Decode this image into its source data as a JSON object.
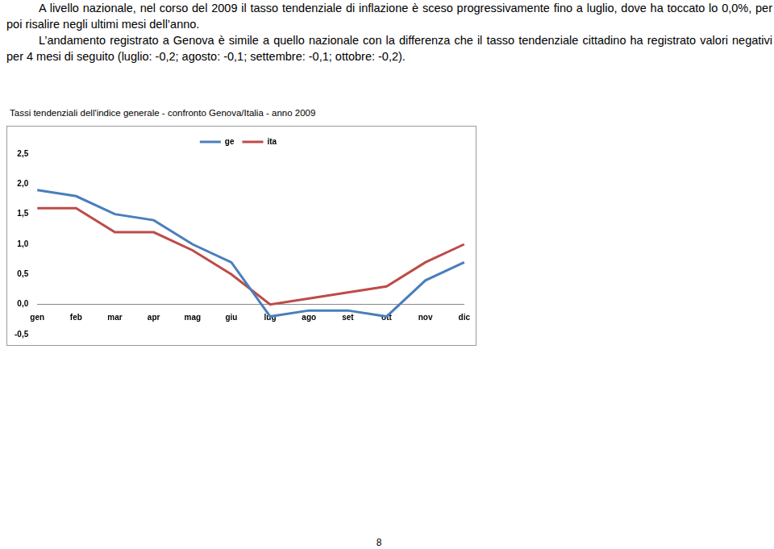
{
  "paragraphs": [
    "A livello nazionale, nel corso del 2009 il tasso tendenziale di inflazione è sceso progressivamente fino a luglio, dove ha toccato lo 0,0%, per poi risalire negli ultimi mesi dell’anno.",
    "L’andamento registrato a Genova è simile a quello nazionale con la differenza che il tasso tendenziale cittadino ha registrato valori negativi per 4 mesi di seguito (luglio: -0,2; agosto: -0,1; settembre: -0,1; ottobre: -0,2)."
  ],
  "chart_data": {
    "type": "line",
    "title": "Tassi tendenziali dell'indice generale - confronto Genova/Italia - anno 2009",
    "categories": [
      "gen",
      "feb",
      "mar",
      "apr",
      "mag",
      "giu",
      "lug",
      "ago",
      "set",
      "ott",
      "nov",
      "dic"
    ],
    "series": [
      {
        "name": "ge",
        "color": "#4a7ebb",
        "values": [
          1.9,
          1.8,
          1.5,
          1.4,
          1.0,
          0.7,
          -0.2,
          -0.1,
          -0.1,
          -0.2,
          0.4,
          0.7
        ]
      },
      {
        "name": "ita",
        "color": "#be4b48",
        "values": [
          1.6,
          1.6,
          1.2,
          1.2,
          0.9,
          0.5,
          0.0,
          0.1,
          0.2,
          0.3,
          0.7,
          1.0
        ]
      }
    ],
    "ylim": [
      -0.5,
      2.5
    ],
    "yticks": [
      {
        "value": -0.5,
        "label": "-0,5"
      },
      {
        "value": 0,
        "label": "0,0"
      },
      {
        "value": 0.5,
        "label": "0,5"
      },
      {
        "value": 1,
        "label": "1,0"
      },
      {
        "value": 1.5,
        "label": "1,5"
      },
      {
        "value": 2,
        "label": "2,0"
      },
      {
        "value": 2.5,
        "label": "2,5"
      }
    ],
    "grid": false,
    "legend": "top",
    "marker": "none",
    "line_style": "solid"
  },
  "page_number": "8"
}
